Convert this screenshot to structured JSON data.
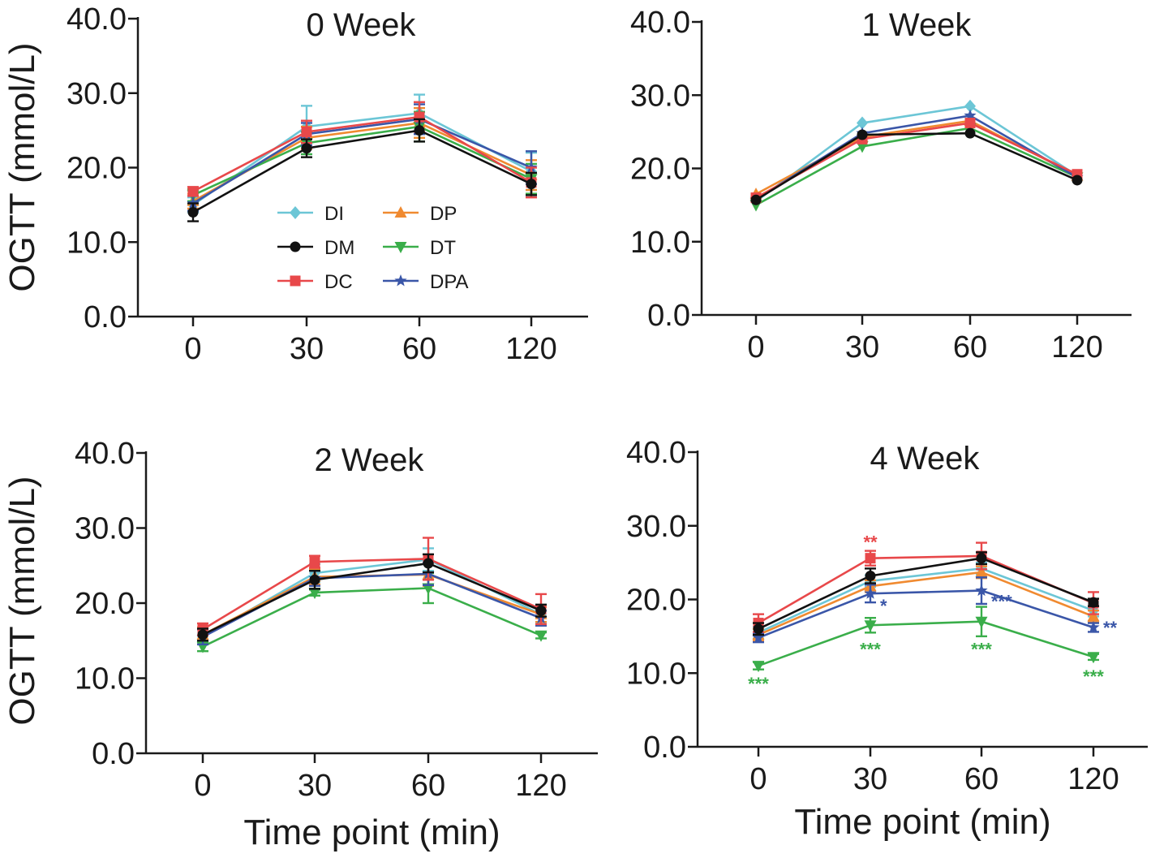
{
  "figure": {
    "ylabel": "OGTT (mmol/L)",
    "xlabel": "Time point (min)",
    "series_colors": {
      "DI": "#6cc6d6",
      "DM": "#111111",
      "DC": "#e8484a",
      "DP": "#f08a30",
      "DT": "#3aae4a",
      "DPA": "#3a56a8"
    },
    "legend": [
      {
        "name": "DI",
        "marker": "diamond"
      },
      {
        "name": "DM",
        "marker": "circle"
      },
      {
        "name": "DC",
        "marker": "square"
      },
      {
        "name": "DP",
        "marker": "triangle-up"
      },
      {
        "name": "DT",
        "marker": "triangle-down"
      },
      {
        "name": "DPA",
        "marker": "star"
      }
    ]
  },
  "chart_data": [
    {
      "type": "line",
      "title": "0 Week",
      "categories": [
        "0",
        "30",
        "60",
        "120"
      ],
      "ylim": [
        0,
        40
      ],
      "yticks": [
        "0.0",
        "10.0",
        "20.0",
        "30.0",
        "40.0"
      ],
      "xlabel": "",
      "ylabel": "OGTT (mmol/L)",
      "legend_shown": true,
      "series": [
        {
          "name": "DI",
          "values": [
            15.0,
            25.5,
            27.3,
            19.5
          ],
          "errors": [
            1.0,
            2.8,
            2.5,
            2.5
          ]
        },
        {
          "name": "DP",
          "values": [
            15.5,
            24.0,
            26.0,
            19.0
          ],
          "errors": [
            1.0,
            1.5,
            2.0,
            2.0
          ]
        },
        {
          "name": "DT",
          "values": [
            16.3,
            23.3,
            25.5,
            18.5
          ],
          "errors": [
            0.8,
            1.5,
            2.0,
            2.0
          ]
        },
        {
          "name": "DPA",
          "values": [
            15.2,
            24.5,
            26.5,
            20.0
          ],
          "errors": [
            1.0,
            1.5,
            2.0,
            2.2
          ]
        },
        {
          "name": "DC",
          "values": [
            16.8,
            24.8,
            26.8,
            18.0
          ],
          "errors": [
            0.6,
            1.5,
            2.0,
            2.0
          ]
        },
        {
          "name": "DM",
          "values": [
            14.0,
            22.6,
            25.0,
            17.8
          ],
          "errors": [
            1.2,
            1.2,
            1.5,
            1.5
          ]
        }
      ],
      "annotations": []
    },
    {
      "type": "line",
      "title": "1 Week",
      "categories": [
        "0",
        "30",
        "60",
        "120"
      ],
      "ylim": [
        0,
        40
      ],
      "yticks": [
        "0.0",
        "10.0",
        "20.0",
        "30.0",
        "40.0"
      ],
      "xlabel": "",
      "ylabel": "",
      "legend_shown": false,
      "series": [
        {
          "name": "DI",
          "values": [
            15.5,
            26.2,
            28.5,
            19.0
          ],
          "errors": [
            0,
            0,
            0,
            0
          ]
        },
        {
          "name": "DP",
          "values": [
            16.5,
            24.3,
            26.5,
            19.0
          ],
          "errors": [
            0,
            0,
            0,
            0
          ]
        },
        {
          "name": "DT",
          "values": [
            15.0,
            23.0,
            25.5,
            18.8
          ],
          "errors": [
            0,
            0,
            0,
            0
          ]
        },
        {
          "name": "DPA",
          "values": [
            15.8,
            24.8,
            27.2,
            18.8
          ],
          "errors": [
            0,
            0,
            0,
            0
          ]
        },
        {
          "name": "DC",
          "values": [
            16.0,
            24.0,
            26.2,
            19.2
          ],
          "errors": [
            0,
            0,
            0,
            0
          ]
        },
        {
          "name": "DM",
          "values": [
            15.7,
            24.6,
            24.8,
            18.4
          ],
          "errors": [
            0,
            0,
            0,
            0
          ]
        }
      ],
      "annotations": []
    },
    {
      "type": "line",
      "title": "2 Week",
      "categories": [
        "0",
        "30",
        "60",
        "120"
      ],
      "ylim": [
        0,
        40
      ],
      "yticks": [
        "0.0",
        "10.0",
        "20.0",
        "30.0",
        "40.0"
      ],
      "xlabel": "Time point (min)",
      "ylabel": "OGTT (mmol/L)",
      "legend_shown": false,
      "series": [
        {
          "name": "DI",
          "values": [
            15.5,
            24.0,
            25.8,
            18.5
          ],
          "errors": [
            1.0,
            1.2,
            1.5,
            1.2
          ]
        },
        {
          "name": "DP",
          "values": [
            15.8,
            23.5,
            23.8,
            18.5
          ],
          "errors": [
            1.0,
            1.0,
            1.5,
            1.0
          ]
        },
        {
          "name": "DT",
          "values": [
            14.2,
            21.4,
            22.0,
            15.7
          ],
          "errors": [
            0.6,
            0.4,
            2.0,
            0.4
          ]
        },
        {
          "name": "DPA",
          "values": [
            15.5,
            23.3,
            23.9,
            18.0
          ],
          "errors": [
            1.0,
            1.0,
            1.5,
            1.0
          ]
        },
        {
          "name": "DC",
          "values": [
            16.5,
            25.5,
            25.9,
            19.2
          ],
          "errors": [
            0.8,
            0.8,
            2.8,
            2.0
          ]
        },
        {
          "name": "DM",
          "values": [
            15.8,
            23.1,
            25.3,
            19.0
          ],
          "errors": [
            0.8,
            1.2,
            1.2,
            0.8
          ]
        }
      ],
      "annotations": []
    },
    {
      "type": "line",
      "title": "4 Week",
      "categories": [
        "0",
        "30",
        "60",
        "120"
      ],
      "ylim": [
        0,
        40
      ],
      "yticks": [
        "0.0",
        "10.0",
        "20.0",
        "30.0",
        "40.0"
      ],
      "xlabel": "Time point (min)",
      "ylabel": "",
      "legend_shown": false,
      "series": [
        {
          "name": "DI",
          "values": [
            15.5,
            22.5,
            24.2,
            18.5
          ],
          "errors": [
            0.8,
            0.8,
            0.8,
            0.8
          ]
        },
        {
          "name": "DP",
          "values": [
            15.2,
            21.8,
            23.7,
            17.7
          ],
          "errors": [
            0.8,
            0.8,
            0.8,
            0.8
          ]
        },
        {
          "name": "DT",
          "values": [
            11.0,
            16.5,
            17.0,
            12.2
          ],
          "errors": [
            0.5,
            1.0,
            2.0,
            0.4
          ]
        },
        {
          "name": "DPA",
          "values": [
            14.8,
            20.8,
            21.2,
            16.2
          ],
          "errors": [
            0.6,
            1.2,
            1.8,
            0.6
          ]
        },
        {
          "name": "DC",
          "values": [
            16.8,
            25.6,
            25.9,
            19.5
          ],
          "errors": [
            1.2,
            1.0,
            1.8,
            1.5
          ]
        },
        {
          "name": "DM",
          "values": [
            16.0,
            23.2,
            25.6,
            19.6
          ],
          "errors": [
            0.8,
            1.0,
            0.8,
            0.5
          ]
        }
      ],
      "annotations": [
        {
          "text": "**",
          "series": "DC",
          "category": "30",
          "y": 27.8
        },
        {
          "text": "*",
          "series": "DPA",
          "category": "30",
          "y": 19.2
        },
        {
          "text": "***",
          "series": "DPA",
          "category": "60",
          "y": 19.8
        },
        {
          "text": "**",
          "series": "DPA",
          "category": "120",
          "y": 16.2
        },
        {
          "text": "***",
          "series": "DT",
          "category": "0",
          "y": 8.6
        },
        {
          "text": "***",
          "series": "DT",
          "category": "30",
          "y": 13.3
        },
        {
          "text": "***",
          "series": "DT",
          "category": "60",
          "y": 13.3
        },
        {
          "text": "***",
          "series": "DT",
          "category": "120",
          "y": 9.6
        }
      ]
    }
  ]
}
